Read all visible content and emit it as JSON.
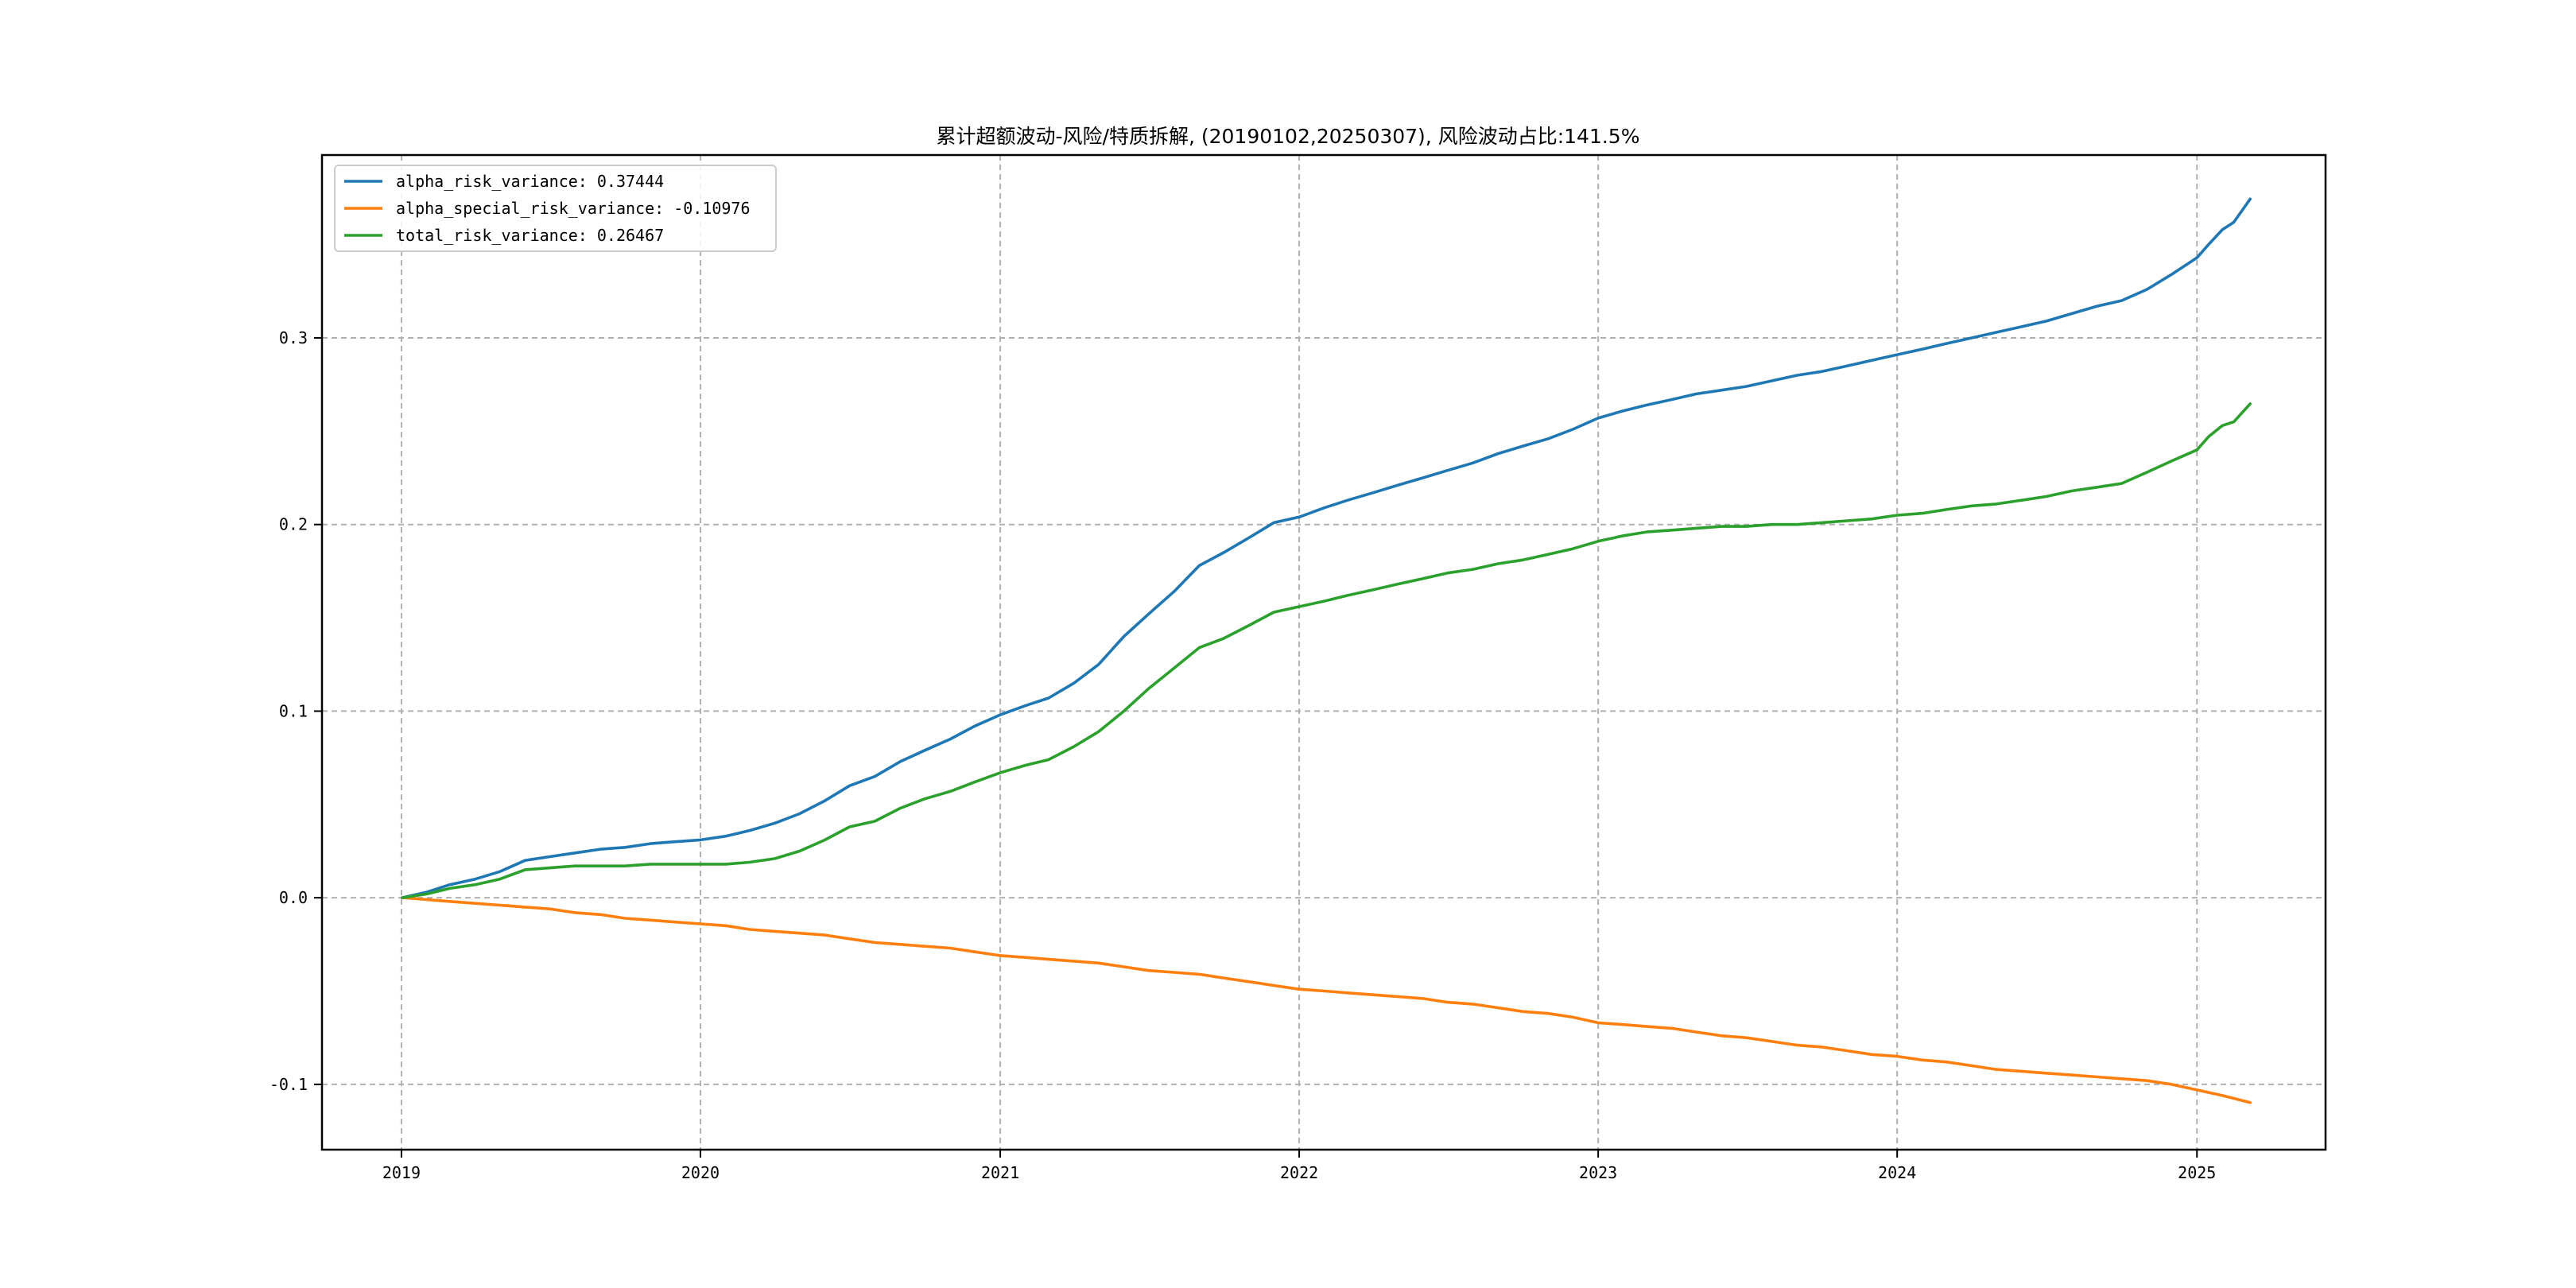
{
  "chart_data": {
    "type": "line",
    "title": "累计超额波动-风险/特质拆解, (20190102,20250307), 风险波动占比:141.5%",
    "xlabel": "",
    "ylabel": "",
    "x_start": "2019-01-02",
    "x_end": "2025-03-07",
    "xlim": [
      "2018-09-26",
      "2025-06-07"
    ],
    "ylim": [
      -0.135,
      0.398
    ],
    "x_ticks": [
      {
        "date": "2019-01-01",
        "label": "2019"
      },
      {
        "date": "2020-01-01",
        "label": "2020"
      },
      {
        "date": "2021-01-01",
        "label": "2021"
      },
      {
        "date": "2022-01-01",
        "label": "2022"
      },
      {
        "date": "2023-01-01",
        "label": "2023"
      },
      {
        "date": "2024-01-01",
        "label": "2024"
      },
      {
        "date": "2025-01-01",
        "label": "2025"
      }
    ],
    "y_ticks": [
      {
        "value": -0.1,
        "label": "-0.1"
      },
      {
        "value": 0.0,
        "label": "0.0"
      },
      {
        "value": 0.1,
        "label": "0.1"
      },
      {
        "value": 0.2,
        "label": "0.2"
      },
      {
        "value": 0.3,
        "label": "0.3"
      }
    ],
    "grid": true,
    "legend_position": "top-left",
    "series": [
      {
        "name": "alpha_risk_variance",
        "legend_label": "alpha_risk_variance: 0.37444",
        "color": "#1f77b4",
        "points": [
          [
            "2019-01-02",
            0.0
          ],
          [
            "2019-02-01",
            0.003
          ],
          [
            "2019-03-01",
            0.007
          ],
          [
            "2019-04-01",
            0.01
          ],
          [
            "2019-05-01",
            0.014
          ],
          [
            "2019-06-01",
            0.02
          ],
          [
            "2019-07-01",
            0.022
          ],
          [
            "2019-08-01",
            0.024
          ],
          [
            "2019-09-01",
            0.026
          ],
          [
            "2019-10-01",
            0.027
          ],
          [
            "2019-11-01",
            0.029
          ],
          [
            "2019-12-01",
            0.03
          ],
          [
            "2020-01-01",
            0.031
          ],
          [
            "2020-02-01",
            0.033
          ],
          [
            "2020-03-01",
            0.036
          ],
          [
            "2020-04-01",
            0.04
          ],
          [
            "2020-05-01",
            0.045
          ],
          [
            "2020-06-01",
            0.052
          ],
          [
            "2020-07-01",
            0.06
          ],
          [
            "2020-08-01",
            0.065
          ],
          [
            "2020-09-01",
            0.073
          ],
          [
            "2020-10-01",
            0.079
          ],
          [
            "2020-11-01",
            0.085
          ],
          [
            "2020-12-01",
            0.092
          ],
          [
            "2021-01-01",
            0.098
          ],
          [
            "2021-02-01",
            0.103
          ],
          [
            "2021-03-01",
            0.107
          ],
          [
            "2021-04-01",
            0.115
          ],
          [
            "2021-05-01",
            0.125
          ],
          [
            "2021-06-01",
            0.14
          ],
          [
            "2021-07-01",
            0.152
          ],
          [
            "2021-08-01",
            0.164
          ],
          [
            "2021-09-01",
            0.178
          ],
          [
            "2021-10-01",
            0.185
          ],
          [
            "2021-11-01",
            0.193
          ],
          [
            "2021-12-01",
            0.201
          ],
          [
            "2022-01-01",
            0.204
          ],
          [
            "2022-02-01",
            0.209
          ],
          [
            "2022-03-01",
            0.213
          ],
          [
            "2022-04-01",
            0.217
          ],
          [
            "2022-05-01",
            0.221
          ],
          [
            "2022-06-01",
            0.225
          ],
          [
            "2022-07-01",
            0.229
          ],
          [
            "2022-08-01",
            0.233
          ],
          [
            "2022-09-01",
            0.238
          ],
          [
            "2022-10-01",
            0.242
          ],
          [
            "2022-11-01",
            0.246
          ],
          [
            "2022-12-01",
            0.251
          ],
          [
            "2023-01-01",
            0.257
          ],
          [
            "2023-02-01",
            0.261
          ],
          [
            "2023-03-01",
            0.264
          ],
          [
            "2023-04-01",
            0.267
          ],
          [
            "2023-05-01",
            0.27
          ],
          [
            "2023-06-01",
            0.272
          ],
          [
            "2023-07-01",
            0.274
          ],
          [
            "2023-08-01",
            0.277
          ],
          [
            "2023-09-01",
            0.28
          ],
          [
            "2023-10-01",
            0.282
          ],
          [
            "2023-11-01",
            0.285
          ],
          [
            "2023-12-01",
            0.288
          ],
          [
            "2024-01-01",
            0.291
          ],
          [
            "2024-02-01",
            0.294
          ],
          [
            "2024-03-01",
            0.297
          ],
          [
            "2024-04-01",
            0.3
          ],
          [
            "2024-05-01",
            0.303
          ],
          [
            "2024-06-01",
            0.306
          ],
          [
            "2024-07-01",
            0.309
          ],
          [
            "2024-08-01",
            0.313
          ],
          [
            "2024-09-01",
            0.317
          ],
          [
            "2024-10-01",
            0.32
          ],
          [
            "2024-11-01",
            0.326
          ],
          [
            "2024-12-01",
            0.334
          ],
          [
            "2025-01-01",
            0.343
          ],
          [
            "2025-01-15",
            0.35
          ],
          [
            "2025-02-01",
            0.358
          ],
          [
            "2025-02-15",
            0.362
          ],
          [
            "2025-03-07",
            0.37444
          ]
        ]
      },
      {
        "name": "alpha_special_risk_variance",
        "legend_label": "alpha_special_risk_variance: -0.10976",
        "color": "#ff7f0e",
        "points": [
          [
            "2019-01-02",
            0.0
          ],
          [
            "2019-02-01",
            -0.001
          ],
          [
            "2019-03-01",
            -0.002
          ],
          [
            "2019-04-01",
            -0.003
          ],
          [
            "2019-05-01",
            -0.004
          ],
          [
            "2019-06-01",
            -0.005
          ],
          [
            "2019-07-01",
            -0.006
          ],
          [
            "2019-08-01",
            -0.008
          ],
          [
            "2019-09-01",
            -0.009
          ],
          [
            "2019-10-01",
            -0.011
          ],
          [
            "2019-11-01",
            -0.012
          ],
          [
            "2019-12-01",
            -0.013
          ],
          [
            "2020-01-01",
            -0.014
          ],
          [
            "2020-02-01",
            -0.015
          ],
          [
            "2020-03-01",
            -0.017
          ],
          [
            "2020-04-01",
            -0.018
          ],
          [
            "2020-05-01",
            -0.019
          ],
          [
            "2020-06-01",
            -0.02
          ],
          [
            "2020-07-01",
            -0.022
          ],
          [
            "2020-08-01",
            -0.024
          ],
          [
            "2020-09-01",
            -0.025
          ],
          [
            "2020-10-01",
            -0.026
          ],
          [
            "2020-11-01",
            -0.027
          ],
          [
            "2020-12-01",
            -0.029
          ],
          [
            "2021-01-01",
            -0.031
          ],
          [
            "2021-02-01",
            -0.032
          ],
          [
            "2021-03-01",
            -0.033
          ],
          [
            "2021-04-01",
            -0.034
          ],
          [
            "2021-05-01",
            -0.035
          ],
          [
            "2021-06-01",
            -0.037
          ],
          [
            "2021-07-01",
            -0.039
          ],
          [
            "2021-08-01",
            -0.04
          ],
          [
            "2021-09-01",
            -0.041
          ],
          [
            "2021-10-01",
            -0.043
          ],
          [
            "2021-11-01",
            -0.045
          ],
          [
            "2021-12-01",
            -0.047
          ],
          [
            "2022-01-01",
            -0.049
          ],
          [
            "2022-02-01",
            -0.05
          ],
          [
            "2022-03-01",
            -0.051
          ],
          [
            "2022-04-01",
            -0.052
          ],
          [
            "2022-05-01",
            -0.053
          ],
          [
            "2022-06-01",
            -0.054
          ],
          [
            "2022-07-01",
            -0.056
          ],
          [
            "2022-08-01",
            -0.057
          ],
          [
            "2022-09-01",
            -0.059
          ],
          [
            "2022-10-01",
            -0.061
          ],
          [
            "2022-11-01",
            -0.062
          ],
          [
            "2022-12-01",
            -0.064
          ],
          [
            "2023-01-01",
            -0.067
          ],
          [
            "2023-02-01",
            -0.068
          ],
          [
            "2023-03-01",
            -0.069
          ],
          [
            "2023-04-01",
            -0.07
          ],
          [
            "2023-05-01",
            -0.072
          ],
          [
            "2023-06-01",
            -0.074
          ],
          [
            "2023-07-01",
            -0.075
          ],
          [
            "2023-08-01",
            -0.077
          ],
          [
            "2023-09-01",
            -0.079
          ],
          [
            "2023-10-01",
            -0.08
          ],
          [
            "2023-11-01",
            -0.082
          ],
          [
            "2023-12-01",
            -0.084
          ],
          [
            "2024-01-01",
            -0.085
          ],
          [
            "2024-02-01",
            -0.087
          ],
          [
            "2024-03-01",
            -0.088
          ],
          [
            "2024-04-01",
            -0.09
          ],
          [
            "2024-05-01",
            -0.092
          ],
          [
            "2024-06-01",
            -0.093
          ],
          [
            "2024-07-01",
            -0.094
          ],
          [
            "2024-08-01",
            -0.095
          ],
          [
            "2024-09-01",
            -0.096
          ],
          [
            "2024-10-01",
            -0.097
          ],
          [
            "2024-11-01",
            -0.098
          ],
          [
            "2024-12-01",
            -0.1
          ],
          [
            "2025-01-01",
            -0.103
          ],
          [
            "2025-02-01",
            -0.106
          ],
          [
            "2025-03-07",
            -0.10976
          ]
        ]
      },
      {
        "name": "total_risk_variance",
        "legend_label": "total_risk_variance: 0.26467",
        "color": "#2ca02c",
        "points": [
          [
            "2019-01-02",
            0.0
          ],
          [
            "2019-02-01",
            0.002
          ],
          [
            "2019-03-01",
            0.005
          ],
          [
            "2019-04-01",
            0.007
          ],
          [
            "2019-05-01",
            0.01
          ],
          [
            "2019-06-01",
            0.015
          ],
          [
            "2019-07-01",
            0.016
          ],
          [
            "2019-08-01",
            0.017
          ],
          [
            "2019-09-01",
            0.017
          ],
          [
            "2019-10-01",
            0.017
          ],
          [
            "2019-11-01",
            0.018
          ],
          [
            "2019-12-01",
            0.018
          ],
          [
            "2020-01-01",
            0.018
          ],
          [
            "2020-02-01",
            0.018
          ],
          [
            "2020-03-01",
            0.019
          ],
          [
            "2020-04-01",
            0.021
          ],
          [
            "2020-05-01",
            0.025
          ],
          [
            "2020-06-01",
            0.031
          ],
          [
            "2020-07-01",
            0.038
          ],
          [
            "2020-08-01",
            0.041
          ],
          [
            "2020-09-01",
            0.048
          ],
          [
            "2020-10-01",
            0.053
          ],
          [
            "2020-11-01",
            0.057
          ],
          [
            "2020-12-01",
            0.062
          ],
          [
            "2021-01-01",
            0.067
          ],
          [
            "2021-02-01",
            0.071
          ],
          [
            "2021-03-01",
            0.074
          ],
          [
            "2021-04-01",
            0.081
          ],
          [
            "2021-05-01",
            0.089
          ],
          [
            "2021-06-01",
            0.1
          ],
          [
            "2021-07-01",
            0.112
          ],
          [
            "2021-08-01",
            0.123
          ],
          [
            "2021-09-01",
            0.134
          ],
          [
            "2021-10-01",
            0.139
          ],
          [
            "2021-11-01",
            0.146
          ],
          [
            "2021-12-01",
            0.153
          ],
          [
            "2022-01-01",
            0.156
          ],
          [
            "2022-02-01",
            0.159
          ],
          [
            "2022-03-01",
            0.162
          ],
          [
            "2022-04-01",
            0.165
          ],
          [
            "2022-05-01",
            0.168
          ],
          [
            "2022-06-01",
            0.171
          ],
          [
            "2022-07-01",
            0.174
          ],
          [
            "2022-08-01",
            0.176
          ],
          [
            "2022-09-01",
            0.179
          ],
          [
            "2022-10-01",
            0.181
          ],
          [
            "2022-11-01",
            0.184
          ],
          [
            "2022-12-01",
            0.187
          ],
          [
            "2023-01-01",
            0.191
          ],
          [
            "2023-02-01",
            0.194
          ],
          [
            "2023-03-01",
            0.196
          ],
          [
            "2023-04-01",
            0.197
          ],
          [
            "2023-05-01",
            0.198
          ],
          [
            "2023-06-01",
            0.199
          ],
          [
            "2023-07-01",
            0.199
          ],
          [
            "2023-08-01",
            0.2
          ],
          [
            "2023-09-01",
            0.2
          ],
          [
            "2023-10-01",
            0.201
          ],
          [
            "2023-11-01",
            0.202
          ],
          [
            "2023-12-01",
            0.203
          ],
          [
            "2024-01-01",
            0.205
          ],
          [
            "2024-02-01",
            0.206
          ],
          [
            "2024-03-01",
            0.208
          ],
          [
            "2024-04-01",
            0.21
          ],
          [
            "2024-05-01",
            0.211
          ],
          [
            "2024-06-01",
            0.213
          ],
          [
            "2024-07-01",
            0.215
          ],
          [
            "2024-08-01",
            0.218
          ],
          [
            "2024-09-01",
            0.22
          ],
          [
            "2024-10-01",
            0.222
          ],
          [
            "2024-11-01",
            0.228
          ],
          [
            "2024-12-01",
            0.234
          ],
          [
            "2025-01-01",
            0.24
          ],
          [
            "2025-01-15",
            0.247
          ],
          [
            "2025-02-01",
            0.253
          ],
          [
            "2025-02-15",
            0.255
          ],
          [
            "2025-03-07",
            0.26467
          ]
        ]
      }
    ]
  }
}
